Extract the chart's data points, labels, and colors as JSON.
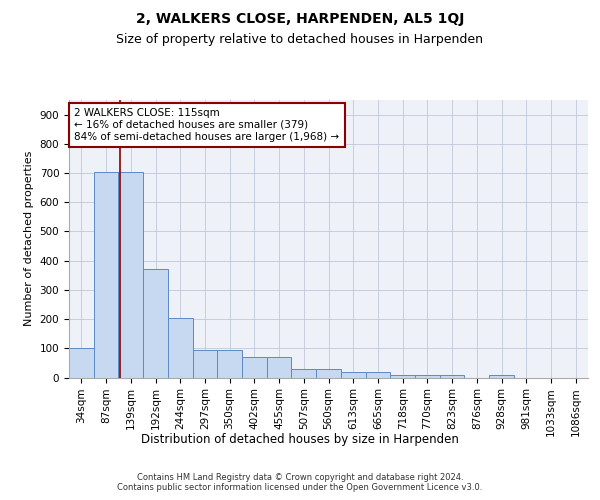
{
  "title": "2, WALKERS CLOSE, HARPENDEN, AL5 1QJ",
  "subtitle": "Size of property relative to detached houses in Harpenden",
  "xlabel": "Distribution of detached houses by size in Harpenden",
  "ylabel": "Number of detached properties",
  "bar_labels": [
    "34sqm",
    "87sqm",
    "139sqm",
    "192sqm",
    "244sqm",
    "297sqm",
    "350sqm",
    "402sqm",
    "455sqm",
    "507sqm",
    "560sqm",
    "613sqm",
    "665sqm",
    "718sqm",
    "770sqm",
    "823sqm",
    "876sqm",
    "928sqm",
    "981sqm",
    "1033sqm",
    "1086sqm"
  ],
  "bar_values": [
    100,
    703,
    703,
    370,
    205,
    95,
    95,
    70,
    70,
    30,
    30,
    20,
    20,
    10,
    10,
    10,
    0,
    10,
    0,
    0,
    0
  ],
  "bar_color": "#c6d9f0",
  "bar_edge_color": "#5b8ac6",
  "grid_color": "#c0c8d8",
  "background_color": "#eef2f8",
  "vline_x": 1.55,
  "vline_color": "#8b0000",
  "annotation_text": "2 WALKERS CLOSE: 115sqm\n← 16% of detached houses are smaller (379)\n84% of semi-detached houses are larger (1,968) →",
  "annotation_box_color": "#8b0000",
  "ylim": [
    0,
    950
  ],
  "yticks": [
    0,
    100,
    200,
    300,
    400,
    500,
    600,
    700,
    800,
    900
  ],
  "footer_text": "Contains HM Land Registry data © Crown copyright and database right 2024.\nContains public sector information licensed under the Open Government Licence v3.0.",
  "title_fontsize": 10,
  "subtitle_fontsize": 9,
  "tick_fontsize": 7.5,
  "ylabel_fontsize": 8,
  "xlabel_fontsize": 8.5,
  "annotation_fontsize": 7.5,
  "footer_fontsize": 6.0
}
